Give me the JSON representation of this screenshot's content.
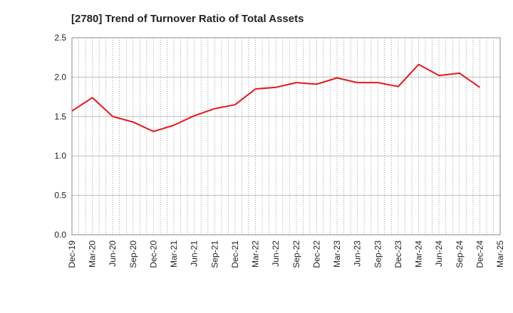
{
  "chart_data": {
    "type": "line",
    "title": "[2780]  Trend of Turnover Ratio of Total Assets",
    "xlabel": "",
    "ylabel": "",
    "ylim": [
      0,
      2.5
    ],
    "yticks": [
      "0.0",
      "0.5",
      "1.0",
      "1.5",
      "2.0",
      "2.5"
    ],
    "tick_labels": [
      "Dec-19",
      "Mar-20",
      "Jun-20",
      "Sep-20",
      "Dec-20",
      "Mar-21",
      "Jun-21",
      "Sep-21",
      "Dec-21",
      "Mar-22",
      "Jun-22",
      "Sep-22",
      "Dec-22",
      "Mar-23",
      "Jun-23",
      "Sep-23",
      "Dec-23",
      "Mar-24",
      "Jun-24",
      "Sep-24",
      "Dec-24",
      "Mar-25"
    ],
    "grid": true,
    "legend": "none",
    "series": [
      {
        "color": "#e8141a",
        "x": [
          "Dec-19",
          "Mar-20",
          "Jun-20",
          "Sep-20",
          "Dec-20",
          "Mar-21",
          "Jun-21",
          "Sep-21",
          "Dec-21",
          "Mar-22",
          "Jun-22",
          "Sep-22",
          "Dec-22",
          "Mar-23",
          "Jun-23",
          "Sep-23",
          "Dec-23",
          "Mar-24",
          "Jun-24",
          "Sep-24",
          "Dec-24"
        ],
        "values": [
          1.57,
          1.74,
          1.5,
          1.43,
          1.31,
          1.39,
          1.51,
          1.6,
          1.65,
          1.85,
          1.87,
          1.93,
          1.91,
          1.99,
          1.93,
          1.93,
          1.88,
          2.16,
          2.02,
          2.05,
          1.87
        ]
      }
    ]
  }
}
